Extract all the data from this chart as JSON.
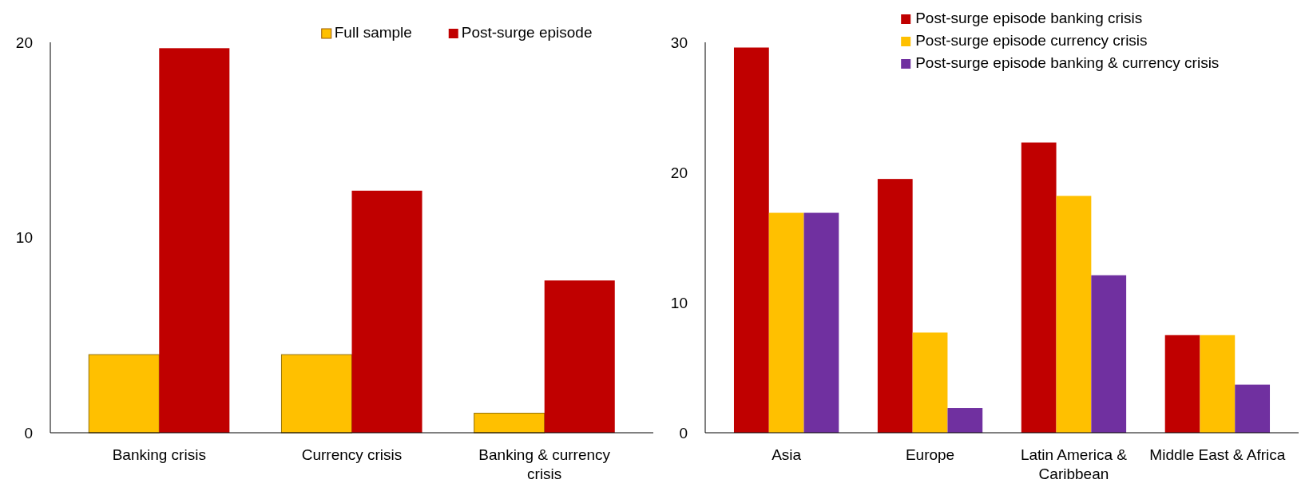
{
  "chart_data": [
    {
      "type": "bar",
      "categories": [
        "Banking crisis",
        "Currency crisis",
        "Banking & currency crisis"
      ],
      "series": [
        {
          "name": "Full sample",
          "color": "#ffc000",
          "values": [
            4,
            4,
            1
          ]
        },
        {
          "name": "Post-surge episode",
          "color": "#c00000",
          "values": [
            19.7,
            12.4,
            7.8
          ]
        }
      ],
      "ylim": [
        0,
        20
      ],
      "yticks": [
        0,
        10,
        20
      ],
      "legend": "top"
    },
    {
      "type": "bar",
      "categories": [
        "Asia",
        "Europe",
        "Latin America & Caribbean",
        "Middle East & Africa"
      ],
      "series": [
        {
          "name": "Post-surge episode banking crisis",
          "color": "#c00000",
          "values": [
            29.6,
            19.5,
            22.3,
            7.5
          ]
        },
        {
          "name": "Post-surge episode currency crisis",
          "color": "#ffc000",
          "values": [
            16.9,
            7.7,
            18.2,
            7.5
          ]
        },
        {
          "name": "Post-surge episode banking & currency crisis",
          "color": "#7030a0",
          "values": [
            16.9,
            1.9,
            12.1,
            3.7
          ]
        }
      ],
      "ylim": [
        0,
        30
      ],
      "yticks": [
        0,
        10,
        20,
        30
      ],
      "legend": "top right"
    }
  ]
}
